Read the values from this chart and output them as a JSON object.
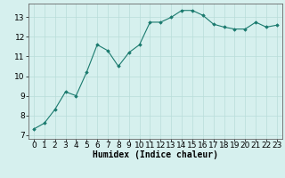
{
  "x": [
    0,
    1,
    2,
    3,
    4,
    5,
    6,
    7,
    8,
    9,
    10,
    11,
    12,
    13,
    14,
    15,
    16,
    17,
    18,
    19,
    20,
    21,
    22,
    23
  ],
  "y": [
    7.3,
    7.6,
    8.3,
    9.2,
    9.0,
    10.2,
    11.6,
    11.3,
    10.5,
    11.2,
    11.6,
    12.75,
    12.75,
    13.0,
    13.35,
    13.35,
    13.1,
    12.65,
    12.5,
    12.4,
    12.4,
    12.75,
    12.5,
    12.6
  ],
  "line_color": "#1a7a6e",
  "marker": "D",
  "marker_size": 1.8,
  "bg_color": "#d6f0ee",
  "grid_color": "#b8ddd9",
  "xlabel": "Humidex (Indice chaleur)",
  "xlabel_fontsize": 7,
  "tick_fontsize": 6.5,
  "ylim": [
    6.8,
    13.7
  ],
  "yticks": [
    7,
    8,
    9,
    10,
    11,
    12,
    13
  ],
  "xticks": [
    0,
    1,
    2,
    3,
    4,
    5,
    6,
    7,
    8,
    9,
    10,
    11,
    12,
    13,
    14,
    15,
    16,
    17,
    18,
    19,
    20,
    21,
    22,
    23
  ],
  "spine_color": "#666666",
  "xlim": [
    -0.5,
    23.5
  ]
}
